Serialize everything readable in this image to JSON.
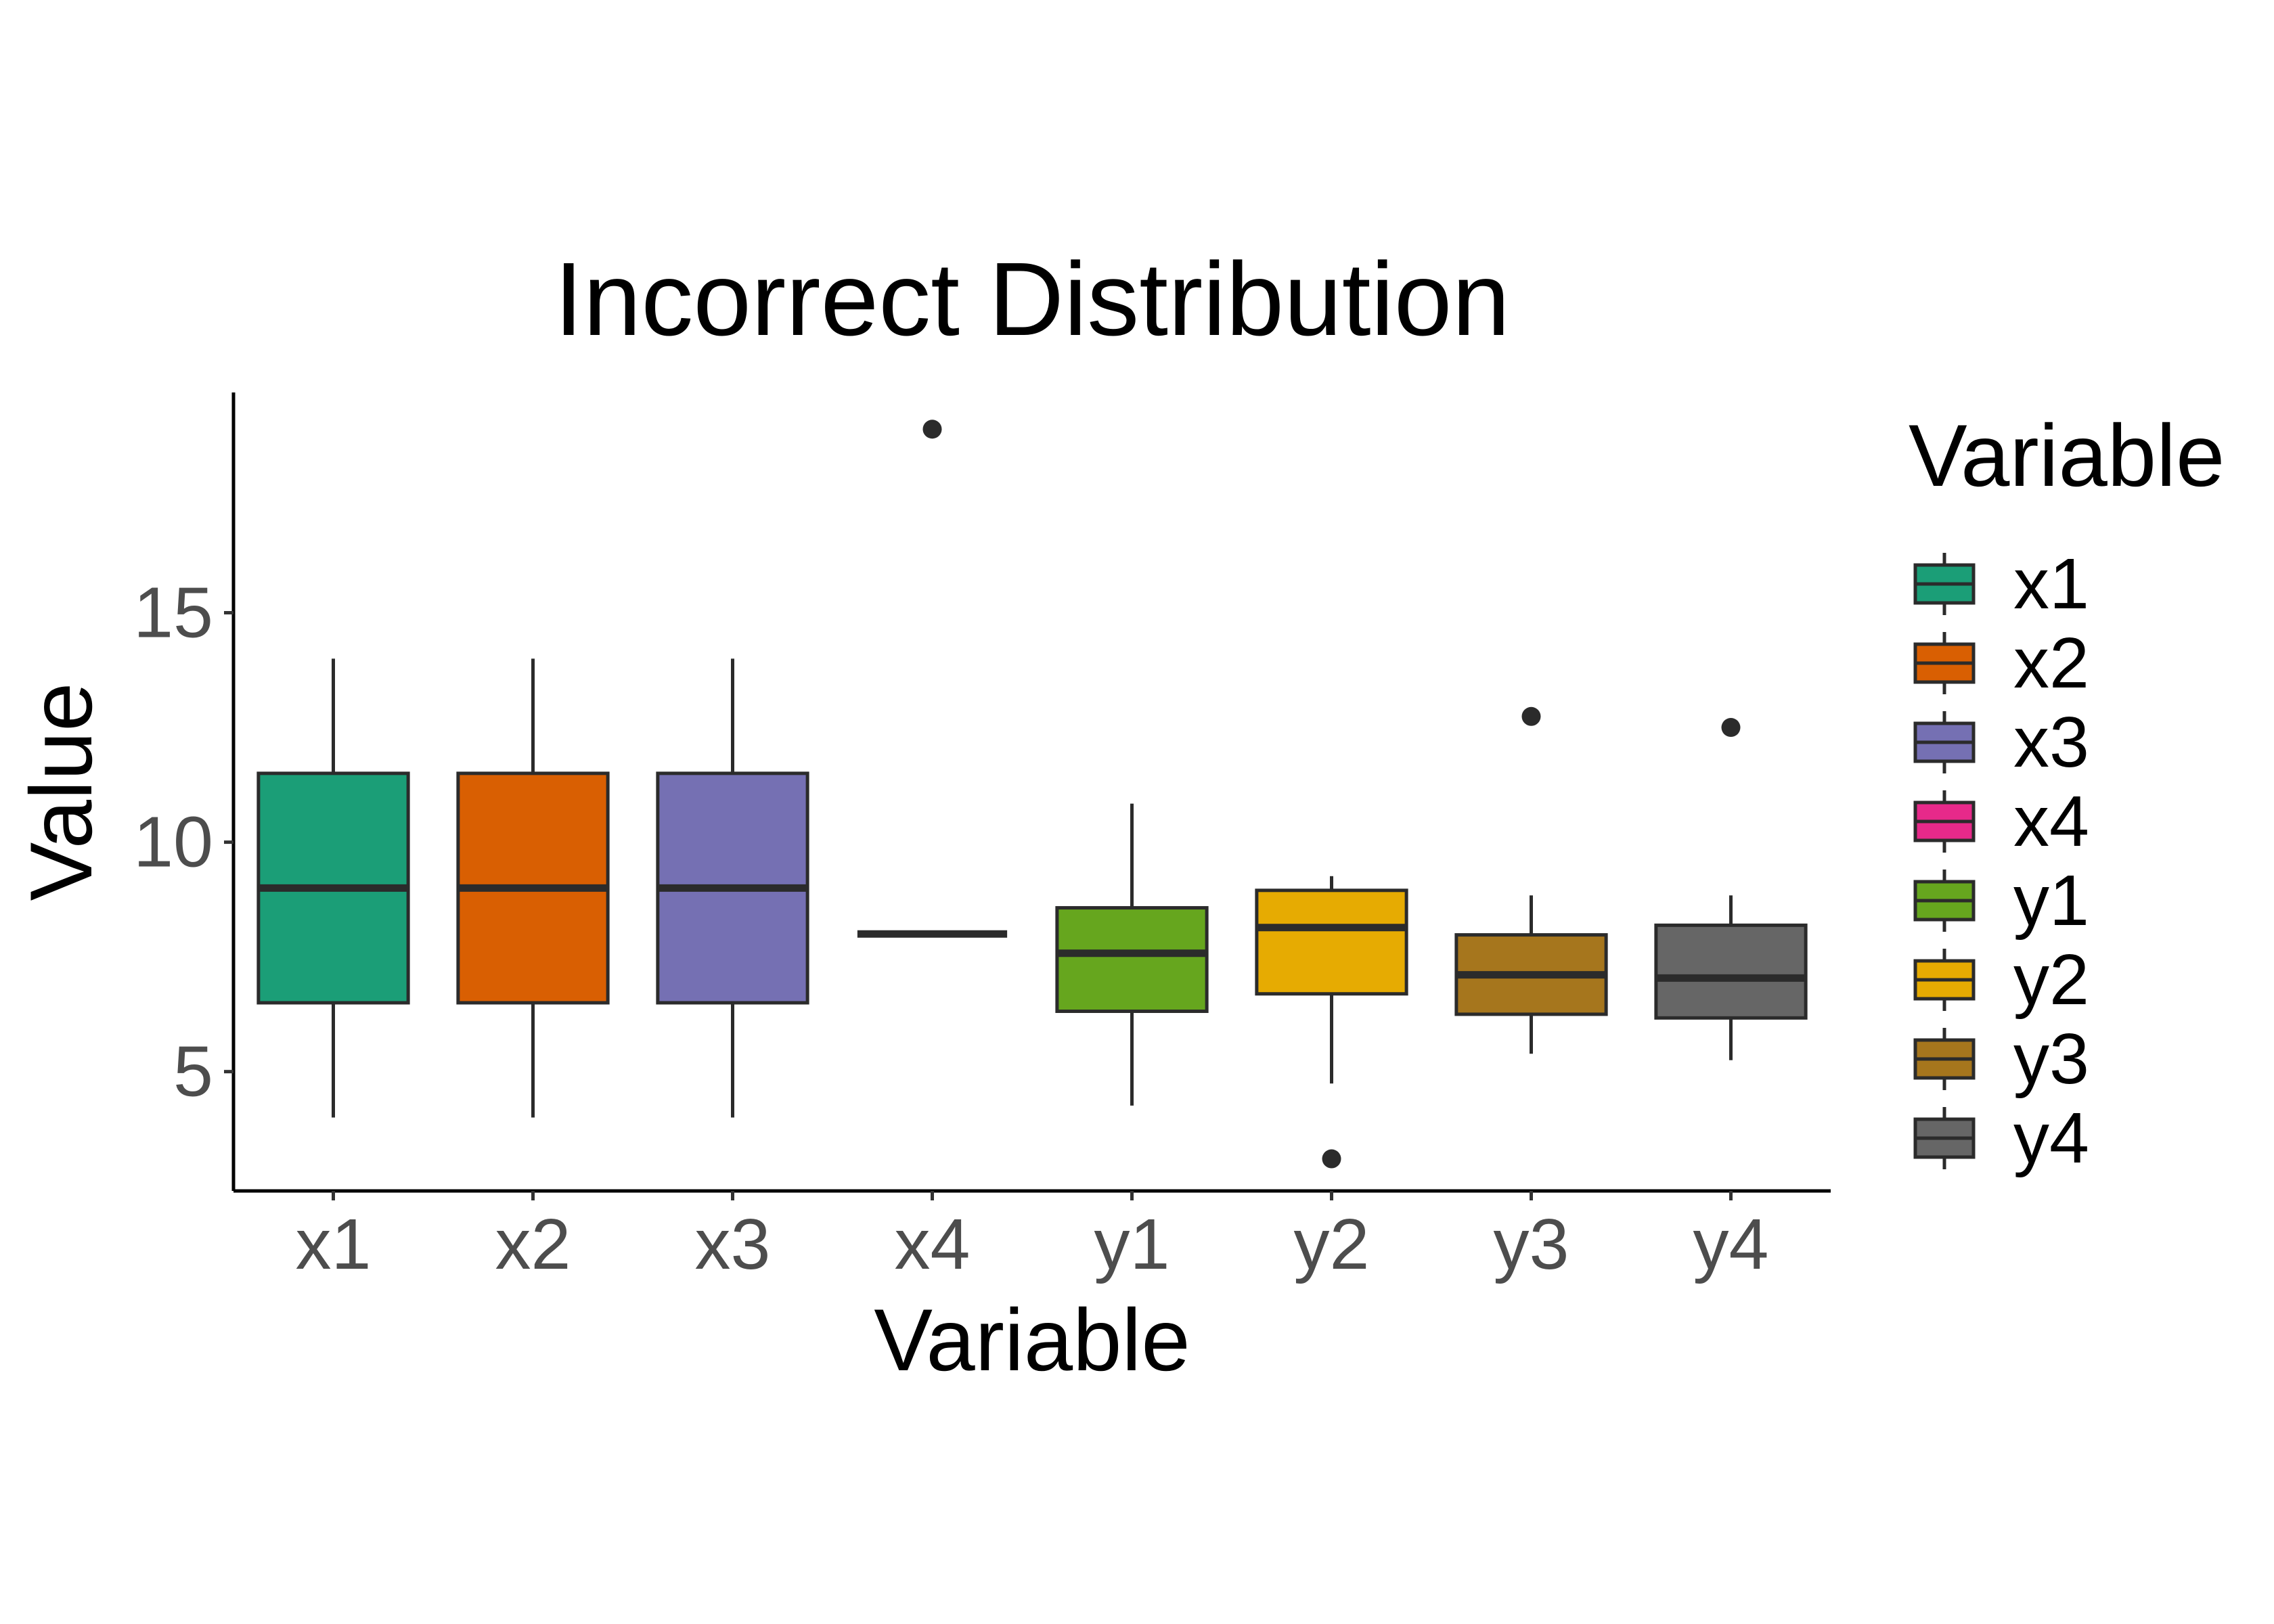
{
  "chart_data": {
    "type": "boxplot",
    "title": "Incorrect Distribution",
    "xlabel": "Variable",
    "ylabel": "Value",
    "ylim": [
      2.4,
      19.8
    ],
    "yticks": [
      5,
      10,
      15
    ],
    "grid": false,
    "legend": {
      "title": "Variable",
      "position": "right"
    },
    "categories": [
      "x1",
      "x2",
      "x3",
      "x4",
      "y1",
      "y2",
      "y3",
      "y4"
    ],
    "series": [
      {
        "name": "x1",
        "color": "#1B9E77",
        "min": 4,
        "q1": 6.5,
        "median": 9,
        "q3": 11.5,
        "max": 14,
        "outliers": []
      },
      {
        "name": "x2",
        "color": "#D95F02",
        "min": 4,
        "q1": 6.5,
        "median": 9,
        "q3": 11.5,
        "max": 14,
        "outliers": []
      },
      {
        "name": "x3",
        "color": "#7570B3",
        "min": 4,
        "q1": 6.5,
        "median": 9,
        "q3": 11.5,
        "max": 14,
        "outliers": []
      },
      {
        "name": "x4",
        "color": "#E7298A",
        "min": 8,
        "q1": 8,
        "median": 8,
        "q3": 8,
        "max": 8,
        "outliers": [
          19
        ]
      },
      {
        "name": "y1",
        "color": "#66A61E",
        "min": 4.26,
        "q1": 6.315,
        "median": 7.58,
        "q3": 8.57,
        "max": 10.84,
        "outliers": []
      },
      {
        "name": "y2",
        "color": "#E6AB02",
        "min": 4.74,
        "q1": 6.695,
        "median": 8.14,
        "q3": 8.95,
        "max": 9.26,
        "outliers": [
          3.1
        ]
      },
      {
        "name": "y3",
        "color": "#A6761D",
        "min": 5.39,
        "q1": 6.25,
        "median": 7.11,
        "q3": 7.98,
        "max": 8.84,
        "outliers": [
          12.74
        ]
      },
      {
        "name": "y4",
        "color": "#666666",
        "min": 5.25,
        "q1": 6.17,
        "median": 7.04,
        "q3": 8.19,
        "max": 8.84,
        "outliers": [
          12.5
        ]
      }
    ]
  }
}
